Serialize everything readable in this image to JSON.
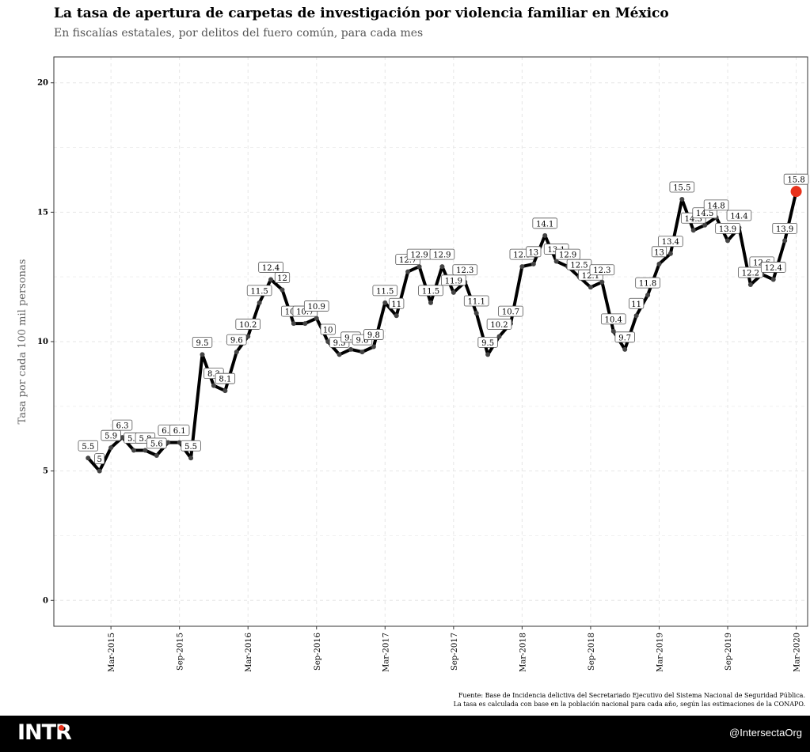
{
  "header": {
    "title": "La tasa de apertura de carpetas de investigación por violencia familiar en México",
    "subtitle": "En fiscalías estatales, por delitos del fuero común, para cada mes"
  },
  "caption": {
    "line1": "Fuente: Base de Incidencia delictiva del Secretariado Ejecutivo del Sistema Nacional de Seguridad Pública.",
    "line2": "La tasa es calculada con base en la población nacional para cada año, según las estimaciones de la CONAPO."
  },
  "footer": {
    "logo_text": "INTR",
    "handle": "@IntersectaOrg"
  },
  "colors": {
    "line": "#000000",
    "point": "#444444",
    "highlight": "#e8311a",
    "grid": "#e6e6e6"
  },
  "chart_data": {
    "type": "line",
    "title": "La tasa de apertura de carpetas de investigación por violencia familiar en México",
    "subtitle": "En fiscalías estatales, por delitos del fuero común, para cada mes",
    "xlabel": "",
    "ylabel": "Tasa por cada 100 mil personas",
    "ylim": [
      -1,
      21
    ],
    "yticks": [
      0,
      5,
      10,
      15,
      20
    ],
    "xlim": [
      "2014-10",
      "2020-04"
    ],
    "xticks": [
      "Mar-2015",
      "Sep-2015",
      "Mar-2016",
      "Sep-2016",
      "Mar-2017",
      "Sep-2017",
      "Mar-2018",
      "Sep-2018",
      "Mar-2019",
      "Sep-2019",
      "Mar-2020"
    ],
    "grid": true,
    "highlight_last_point": true,
    "x": [
      "2015-01",
      "2015-02",
      "2015-03",
      "2015-04",
      "2015-05",
      "2015-06",
      "2015-07",
      "2015-08",
      "2015-09",
      "2015-10",
      "2015-11",
      "2015-12",
      "2016-01",
      "2016-02",
      "2016-03",
      "2016-04",
      "2016-05",
      "2016-06",
      "2016-07",
      "2016-08",
      "2016-09",
      "2016-10",
      "2016-11",
      "2016-12",
      "2017-01",
      "2017-02",
      "2017-03",
      "2017-04",
      "2017-05",
      "2017-06",
      "2017-07",
      "2017-08",
      "2017-09",
      "2017-10",
      "2017-11",
      "2017-12",
      "2018-01",
      "2018-02",
      "2018-03",
      "2018-04",
      "2018-05",
      "2018-06",
      "2018-07",
      "2018-08",
      "2018-09",
      "2018-10",
      "2018-11",
      "2018-12",
      "2019-01",
      "2019-02",
      "2019-03",
      "2019-04",
      "2019-05",
      "2019-06",
      "2019-07",
      "2019-08",
      "2019-09",
      "2019-10",
      "2019-11",
      "2019-12",
      "2020-01",
      "2020-02",
      "2020-03"
    ],
    "values": [
      5.5,
      5,
      5.9,
      6.3,
      5.8,
      5.8,
      5.6,
      6.1,
      6.1,
      5.5,
      9.5,
      8.3,
      8.1,
      9.6,
      10.2,
      11.5,
      12.4,
      12,
      10.7,
      10.7,
      10.9,
      10,
      9.5,
      9.7,
      9.6,
      9.8,
      11.5,
      11,
      12.7,
      12.9,
      11.5,
      12.9,
      11.9,
      12.3,
      11.1,
      9.5,
      10.2,
      10.7,
      12.9,
      13,
      14.1,
      13.1,
      12.9,
      12.5,
      12.1,
      12.3,
      10.4,
      9.7,
      11,
      11.8,
      13,
      13.4,
      15.5,
      14.3,
      14.5,
      14.8,
      13.9,
      14.4,
      12.2,
      12.6,
      12.4,
      13.9,
      15.8
    ],
    "labels": [
      "5.5",
      "5",
      "5.9",
      "6.3",
      "5.8",
      "5.8",
      "5.6",
      "6.1",
      "6.1",
      "5.5",
      "9.5",
      "8.3",
      "8.1",
      "9.6",
      "10.2",
      "11.5",
      "12.4",
      "12",
      "10.7",
      "10.7",
      "10.9",
      "10",
      "9.5",
      "9.7",
      "9.6",
      "9.8",
      "11.5",
      "11",
      "12.7",
      "12.9",
      "11.5",
      "12.9",
      "11.9",
      "12.3",
      "11.1",
      "9.5",
      "10.2",
      "10.7",
      "12.9",
      "13",
      "14.1",
      "13.1",
      "12.9",
      "12.5",
      "12.1",
      "12.3",
      "10.4",
      "9.7",
      "11",
      "11.8",
      "13",
      "13.4",
      "15.5",
      "14.3",
      "14.5",
      "14.8",
      "13.9",
      "14.4",
      "12.2",
      "12.6",
      "12.4",
      "13.9",
      "15.8"
    ]
  }
}
